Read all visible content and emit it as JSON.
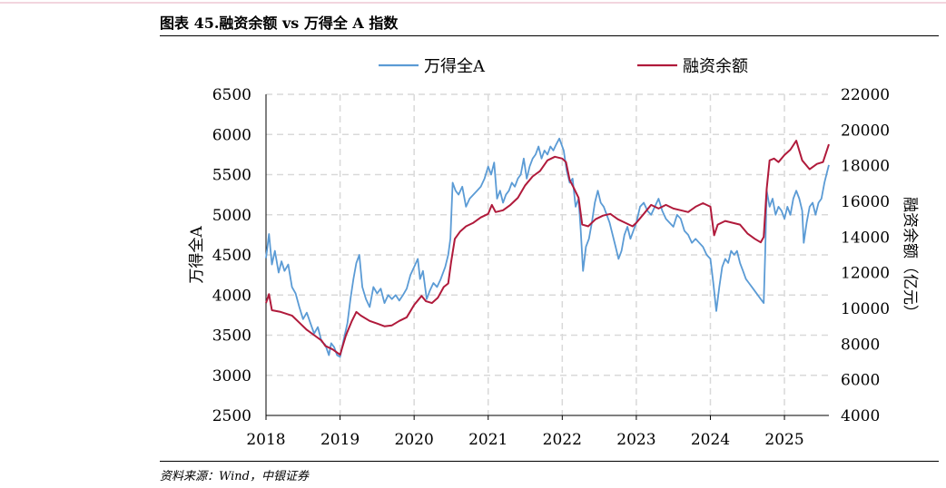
{
  "header": {
    "title": "图表 45.融资余额 vs 万得全 A 指数"
  },
  "footer": {
    "source": "资料来源：Wind，中银证券"
  },
  "chart_data": {
    "type": "line",
    "title": "图表 45.融资余额 vs 万得全 A 指数",
    "x_ticks": [
      "2018",
      "2019",
      "2020",
      "2021",
      "2022",
      "2023",
      "2024",
      "2025"
    ],
    "x_range": [
      2018.0,
      2025.6
    ],
    "y_left": {
      "label": "万得全A",
      "min": 2500,
      "max": 6500,
      "ticks": [
        "2500",
        "3000",
        "3500",
        "4000",
        "4500",
        "5000",
        "5500",
        "6000",
        "6500"
      ]
    },
    "y_right": {
      "label": "融资余额（亿元）",
      "min": 4000,
      "max": 22000,
      "ticks": [
        "4000",
        "6000",
        "8000",
        "10000",
        "12000",
        "14000",
        "16000",
        "18000",
        "20000",
        "22000"
      ]
    },
    "grid": true,
    "legend_position": "top",
    "series": [
      {
        "name": "万得全A",
        "axis": "left",
        "color": "#5b9bd5",
        "points": [
          [
            2018.0,
            4460
          ],
          [
            2018.04,
            4760
          ],
          [
            2018.08,
            4380
          ],
          [
            2018.12,
            4550
          ],
          [
            2018.17,
            4280
          ],
          [
            2018.21,
            4420
          ],
          [
            2018.25,
            4300
          ],
          [
            2018.3,
            4380
          ],
          [
            2018.35,
            4100
          ],
          [
            2018.4,
            4020
          ],
          [
            2018.45,
            3850
          ],
          [
            2018.5,
            3700
          ],
          [
            2018.55,
            3780
          ],
          [
            2018.6,
            3650
          ],
          [
            2018.65,
            3520
          ],
          [
            2018.7,
            3600
          ],
          [
            2018.75,
            3420
          ],
          [
            2018.8,
            3380
          ],
          [
            2018.85,
            3250
          ],
          [
            2018.88,
            3400
          ],
          [
            2018.92,
            3350
          ],
          [
            2018.96,
            3250
          ],
          [
            2019.0,
            3230
          ],
          [
            2019.05,
            3450
          ],
          [
            2019.1,
            3650
          ],
          [
            2019.14,
            3950
          ],
          [
            2019.18,
            4200
          ],
          [
            2019.22,
            4400
          ],
          [
            2019.26,
            4500
          ],
          [
            2019.3,
            4100
          ],
          [
            2019.35,
            3950
          ],
          [
            2019.4,
            3850
          ],
          [
            2019.45,
            4100
          ],
          [
            2019.5,
            4020
          ],
          [
            2019.55,
            4080
          ],
          [
            2019.6,
            3900
          ],
          [
            2019.65,
            4000
          ],
          [
            2019.7,
            3950
          ],
          [
            2019.75,
            4000
          ],
          [
            2019.8,
            3930
          ],
          [
            2019.85,
            4000
          ],
          [
            2019.9,
            4080
          ],
          [
            2019.95,
            4250
          ],
          [
            2020.0,
            4350
          ],
          [
            2020.05,
            4450
          ],
          [
            2020.08,
            4200
          ],
          [
            2020.12,
            4300
          ],
          [
            2020.17,
            3950
          ],
          [
            2020.21,
            4050
          ],
          [
            2020.26,
            4150
          ],
          [
            2020.31,
            4100
          ],
          [
            2020.36,
            4200
          ],
          [
            2020.42,
            4350
          ],
          [
            2020.46,
            4500
          ],
          [
            2020.49,
            4700
          ],
          [
            2020.52,
            5400
          ],
          [
            2020.56,
            5300
          ],
          [
            2020.6,
            5250
          ],
          [
            2020.65,
            5350
          ],
          [
            2020.7,
            5100
          ],
          [
            2020.75,
            5200
          ],
          [
            2020.8,
            5250
          ],
          [
            2020.85,
            5300
          ],
          [
            2020.9,
            5350
          ],
          [
            2020.95,
            5450
          ],
          [
            2021.0,
            5600
          ],
          [
            2021.04,
            5500
          ],
          [
            2021.08,
            5650
          ],
          [
            2021.12,
            5200
          ],
          [
            2021.16,
            5300
          ],
          [
            2021.2,
            5150
          ],
          [
            2021.24,
            5250
          ],
          [
            2021.28,
            5300
          ],
          [
            2021.32,
            5400
          ],
          [
            2021.36,
            5350
          ],
          [
            2021.4,
            5450
          ],
          [
            2021.44,
            5500
          ],
          [
            2021.48,
            5700
          ],
          [
            2021.52,
            5450
          ],
          [
            2021.56,
            5600
          ],
          [
            2021.6,
            5700
          ],
          [
            2021.64,
            5750
          ],
          [
            2021.68,
            5850
          ],
          [
            2021.72,
            5700
          ],
          [
            2021.76,
            5800
          ],
          [
            2021.8,
            5750
          ],
          [
            2021.84,
            5850
          ],
          [
            2021.88,
            5800
          ],
          [
            2021.92,
            5880
          ],
          [
            2021.96,
            5950
          ],
          [
            2021.98,
            5900
          ],
          [
            2022.02,
            5800
          ],
          [
            2022.06,
            5550
          ],
          [
            2022.1,
            5400
          ],
          [
            2022.14,
            5450
          ],
          [
            2022.18,
            5100
          ],
          [
            2022.22,
            5200
          ],
          [
            2022.25,
            4800
          ],
          [
            2022.28,
            4300
          ],
          [
            2022.32,
            4600
          ],
          [
            2022.36,
            4700
          ],
          [
            2022.4,
            4900
          ],
          [
            2022.44,
            5150
          ],
          [
            2022.48,
            5300
          ],
          [
            2022.52,
            5150
          ],
          [
            2022.56,
            5100
          ],
          [
            2022.6,
            5000
          ],
          [
            2022.64,
            4900
          ],
          [
            2022.68,
            4750
          ],
          [
            2022.72,
            4600
          ],
          [
            2022.76,
            4450
          ],
          [
            2022.8,
            4550
          ],
          [
            2022.84,
            4750
          ],
          [
            2022.88,
            4850
          ],
          [
            2022.92,
            4700
          ],
          [
            2022.96,
            4800
          ],
          [
            2023.0,
            4900
          ],
          [
            2023.05,
            5100
          ],
          [
            2023.1,
            5150
          ],
          [
            2023.15,
            5050
          ],
          [
            2023.2,
            5000
          ],
          [
            2023.25,
            5100
          ],
          [
            2023.3,
            5200
          ],
          [
            2023.35,
            5050
          ],
          [
            2023.4,
            4950
          ],
          [
            2023.45,
            4900
          ],
          [
            2023.5,
            4850
          ],
          [
            2023.55,
            5000
          ],
          [
            2023.6,
            4950
          ],
          [
            2023.65,
            4800
          ],
          [
            2023.7,
            4750
          ],
          [
            2023.75,
            4650
          ],
          [
            2023.8,
            4700
          ],
          [
            2023.85,
            4650
          ],
          [
            2023.9,
            4600
          ],
          [
            2023.95,
            4500
          ],
          [
            2024.0,
            4450
          ],
          [
            2024.04,
            4150
          ],
          [
            2024.08,
            3800
          ],
          [
            2024.12,
            4100
          ],
          [
            2024.16,
            4350
          ],
          [
            2024.2,
            4450
          ],
          [
            2024.24,
            4400
          ],
          [
            2024.28,
            4550
          ],
          [
            2024.32,
            4500
          ],
          [
            2024.36,
            4550
          ],
          [
            2024.4,
            4400
          ],
          [
            2024.44,
            4300
          ],
          [
            2024.48,
            4200
          ],
          [
            2024.52,
            4150
          ],
          [
            2024.56,
            4100
          ],
          [
            2024.6,
            4050
          ],
          [
            2024.64,
            4000
          ],
          [
            2024.68,
            3950
          ],
          [
            2024.72,
            3900
          ],
          [
            2024.74,
            4500
          ],
          [
            2024.76,
            5300
          ],
          [
            2024.8,
            5100
          ],
          [
            2024.84,
            5200
          ],
          [
            2024.88,
            5000
          ],
          [
            2024.92,
            5100
          ],
          [
            2024.96,
            5050
          ],
          [
            2025.0,
            4950
          ],
          [
            2025.04,
            5100
          ],
          [
            2025.08,
            5000
          ],
          [
            2025.12,
            5200
          ],
          [
            2025.16,
            5300
          ],
          [
            2025.2,
            5200
          ],
          [
            2025.24,
            5050
          ],
          [
            2025.26,
            4650
          ],
          [
            2025.3,
            4900
          ],
          [
            2025.34,
            5100
          ],
          [
            2025.38,
            5150
          ],
          [
            2025.42,
            5000
          ],
          [
            2025.46,
            5150
          ],
          [
            2025.5,
            5200
          ],
          [
            2025.54,
            5400
          ],
          [
            2025.58,
            5550
          ],
          [
            2025.6,
            5620
          ]
        ]
      },
      {
        "name": "融资余额",
        "axis": "right",
        "color": "#b01a3b",
        "points": [
          [
            2018.0,
            10300
          ],
          [
            2018.04,
            10800
          ],
          [
            2018.08,
            9900
          ],
          [
            2018.2,
            9800
          ],
          [
            2018.35,
            9600
          ],
          [
            2018.45,
            9200
          ],
          [
            2018.55,
            8800
          ],
          [
            2018.65,
            8500
          ],
          [
            2018.75,
            8200
          ],
          [
            2018.8,
            7900
          ],
          [
            2018.9,
            7700
          ],
          [
            2019.0,
            7400
          ],
          [
            2019.08,
            8500
          ],
          [
            2019.16,
            9300
          ],
          [
            2019.22,
            9800
          ],
          [
            2019.28,
            9600
          ],
          [
            2019.4,
            9300
          ],
          [
            2019.5,
            9150
          ],
          [
            2019.6,
            9000
          ],
          [
            2019.7,
            9050
          ],
          [
            2019.8,
            9300
          ],
          [
            2019.9,
            9500
          ],
          [
            2020.0,
            10200
          ],
          [
            2020.06,
            10500
          ],
          [
            2020.1,
            10700
          ],
          [
            2020.16,
            10400
          ],
          [
            2020.24,
            10300
          ],
          [
            2020.32,
            10600
          ],
          [
            2020.4,
            11200
          ],
          [
            2020.46,
            11400
          ],
          [
            2020.5,
            12600
          ],
          [
            2020.55,
            13900
          ],
          [
            2020.62,
            14300
          ],
          [
            2020.7,
            14600
          ],
          [
            2020.8,
            14800
          ],
          [
            2020.9,
            15100
          ],
          [
            2021.0,
            15300
          ],
          [
            2021.05,
            15800
          ],
          [
            2021.1,
            15400
          ],
          [
            2021.2,
            15500
          ],
          [
            2021.3,
            15800
          ],
          [
            2021.4,
            16200
          ],
          [
            2021.5,
            16900
          ],
          [
            2021.6,
            17400
          ],
          [
            2021.7,
            17700
          ],
          [
            2021.8,
            18300
          ],
          [
            2021.9,
            18500
          ],
          [
            2022.0,
            18400
          ],
          [
            2022.05,
            18200
          ],
          [
            2022.1,
            17200
          ],
          [
            2022.15,
            16800
          ],
          [
            2022.22,
            16200
          ],
          [
            2022.27,
            14700
          ],
          [
            2022.35,
            14600
          ],
          [
            2022.45,
            15000
          ],
          [
            2022.55,
            15200
          ],
          [
            2022.65,
            15300
          ],
          [
            2022.75,
            15000
          ],
          [
            2022.85,
            14800
          ],
          [
            2022.95,
            14600
          ],
          [
            2023.0,
            14800
          ],
          [
            2023.1,
            15300
          ],
          [
            2023.2,
            15800
          ],
          [
            2023.3,
            15600
          ],
          [
            2023.4,
            15800
          ],
          [
            2023.5,
            15600
          ],
          [
            2023.6,
            15500
          ],
          [
            2023.7,
            15400
          ],
          [
            2023.8,
            15700
          ],
          [
            2023.9,
            15900
          ],
          [
            2024.0,
            15700
          ],
          [
            2024.05,
            14100
          ],
          [
            2024.1,
            14700
          ],
          [
            2024.2,
            14900
          ],
          [
            2024.3,
            14800
          ],
          [
            2024.4,
            14700
          ],
          [
            2024.5,
            14200
          ],
          [
            2024.6,
            13900
          ],
          [
            2024.68,
            13700
          ],
          [
            2024.72,
            14000
          ],
          [
            2024.76,
            16700
          ],
          [
            2024.8,
            18300
          ],
          [
            2024.86,
            18400
          ],
          [
            2024.92,
            18200
          ],
          [
            2025.0,
            18600
          ],
          [
            2025.08,
            18900
          ],
          [
            2025.16,
            19400
          ],
          [
            2025.24,
            18300
          ],
          [
            2025.34,
            17800
          ],
          [
            2025.44,
            18100
          ],
          [
            2025.52,
            18200
          ],
          [
            2025.6,
            19200
          ]
        ]
      }
    ]
  }
}
